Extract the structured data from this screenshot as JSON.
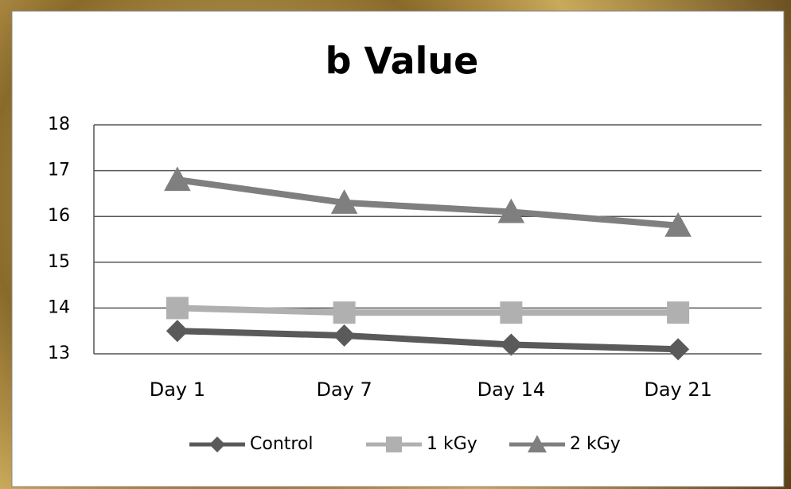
{
  "chart_data": {
    "type": "line",
    "title": "b Value",
    "categories": [
      "Day 1",
      "Day 7",
      "Day 14",
      "Day 21"
    ],
    "series": [
      {
        "name": "Control",
        "color": "#5a5a5a",
        "marker": "diamond",
        "values": [
          13.5,
          13.4,
          13.2,
          13.1
        ]
      },
      {
        "name": "1 kGy",
        "color": "#b0b0b0",
        "marker": "square",
        "values": [
          14.0,
          13.9,
          13.9,
          13.9
        ]
      },
      {
        "name": "2 kGy",
        "color": "#7f7f7f",
        "marker": "triangle",
        "values": [
          16.8,
          16.3,
          16.1,
          15.8
        ]
      }
    ],
    "ylim": [
      13,
      18
    ],
    "yticks": [
      13,
      14,
      15,
      16,
      17,
      18
    ],
    "grid": true,
    "legend": "bottom"
  }
}
